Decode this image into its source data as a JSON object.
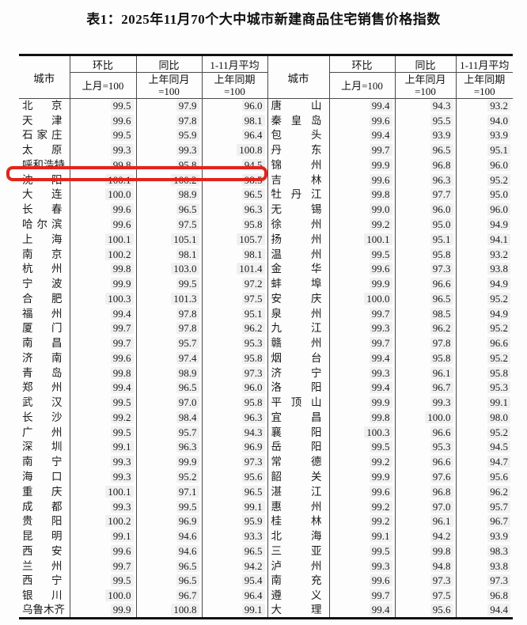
{
  "title": "表1：2025年11月70个大中城市新建商品住宅销售价格指数",
  "header": {
    "city": "城市",
    "mom": "环比",
    "yoy": "同比",
    "avg": "1-11月平均",
    "mom_base": "上月=100",
    "yoy_base": "上年同月\n=100",
    "avg_base": "上年同期\n=100"
  },
  "highlight": {
    "city": "沈阳",
    "color": "#e0251c"
  },
  "table": {
    "left_rows": [
      {
        "city": "北京",
        "mom": "99.5",
        "yoy": "97.9",
        "avg": "96.0"
      },
      {
        "city": "天津",
        "mom": "99.6",
        "yoy": "97.8",
        "avg": "98.1"
      },
      {
        "city": "石家庄",
        "mom": "99.5",
        "yoy": "95.9",
        "avg": "96.4"
      },
      {
        "city": "太原",
        "mom": "99.3",
        "yoy": "99.3",
        "avg": "100.8"
      },
      {
        "city": "呼和浩特",
        "mom": "99.8",
        "yoy": "95.8",
        "avg": "94.5"
      },
      {
        "city": "沈阳",
        "mom": "100.1",
        "yoy": "100.2",
        "avg": "98.5"
      },
      {
        "city": "大连",
        "mom": "100.0",
        "yoy": "98.9",
        "avg": "96.5"
      },
      {
        "city": "长春",
        "mom": "99.6",
        "yoy": "96.5",
        "avg": "96.3"
      },
      {
        "city": "哈尔滨",
        "mom": "99.6",
        "yoy": "97.5",
        "avg": "95.8"
      },
      {
        "city": "上海",
        "mom": "100.1",
        "yoy": "105.1",
        "avg": "105.7"
      },
      {
        "city": "南京",
        "mom": "100.2",
        "yoy": "98.1",
        "avg": "98.1"
      },
      {
        "city": "杭州",
        "mom": "99.8",
        "yoy": "103.0",
        "avg": "101.4"
      },
      {
        "city": "宁波",
        "mom": "99.9",
        "yoy": "99.5",
        "avg": "97.2"
      },
      {
        "city": "合肥",
        "mom": "100.3",
        "yoy": "101.3",
        "avg": "97.5"
      },
      {
        "city": "福州",
        "mom": "99.4",
        "yoy": "97.8",
        "avg": "95.1"
      },
      {
        "city": "厦门",
        "mom": "99.7",
        "yoy": "97.8",
        "avg": "96.2"
      },
      {
        "city": "南昌",
        "mom": "99.7",
        "yoy": "95.7",
        "avg": "95.3"
      },
      {
        "city": "济南",
        "mom": "99.6",
        "yoy": "97.4",
        "avg": "95.8"
      },
      {
        "city": "青岛",
        "mom": "99.8",
        "yoy": "98.9",
        "avg": "97.3"
      },
      {
        "city": "郑州",
        "mom": "99.4",
        "yoy": "96.5",
        "avg": "96.0"
      },
      {
        "city": "武汉",
        "mom": "99.5",
        "yoy": "97.0",
        "avg": "95.8"
      },
      {
        "city": "长沙",
        "mom": "99.2",
        "yoy": "98.4",
        "avg": "96.3"
      },
      {
        "city": "广州",
        "mom": "99.5",
        "yoy": "95.7",
        "avg": "94.3"
      },
      {
        "city": "深圳",
        "mom": "99.1",
        "yoy": "96.3",
        "avg": "96.9"
      },
      {
        "city": "南宁",
        "mom": "99.3",
        "yoy": "99.9",
        "avg": "97.3"
      },
      {
        "city": "海口",
        "mom": "99.3",
        "yoy": "95.2",
        "avg": "95.6"
      },
      {
        "city": "重庆",
        "mom": "100.1",
        "yoy": "97.1",
        "avg": "96.5"
      },
      {
        "city": "成都",
        "mom": "99.3",
        "yoy": "99.5",
        "avg": "99.1"
      },
      {
        "city": "贵阳",
        "mom": "100.2",
        "yoy": "96.9",
        "avg": "95.9"
      },
      {
        "city": "昆明",
        "mom": "99.1",
        "yoy": "94.6",
        "avg": "93.3"
      },
      {
        "city": "西安",
        "mom": "99.6",
        "yoy": "94.6",
        "avg": "96.5"
      },
      {
        "city": "兰州",
        "mom": "99.7",
        "yoy": "96.5",
        "avg": "94.2"
      },
      {
        "city": "西宁",
        "mom": "99.5",
        "yoy": "96.5",
        "avg": "95.4"
      },
      {
        "city": "银川",
        "mom": "100.0",
        "yoy": "96.7",
        "avg": "96.4"
      },
      {
        "city": "乌鲁木齐",
        "mom": "99.9",
        "yoy": "100.8",
        "avg": "99.1"
      }
    ],
    "right_rows": [
      {
        "city": "唐山",
        "mom": "99.4",
        "yoy": "94.3",
        "avg": "93.2"
      },
      {
        "city": "秦皇岛",
        "mom": "99.6",
        "yoy": "95.5",
        "avg": "94.0"
      },
      {
        "city": "包头",
        "mom": "99.4",
        "yoy": "93.9",
        "avg": "93.9"
      },
      {
        "city": "丹东",
        "mom": "99.7",
        "yoy": "96.5",
        "avg": "95.1"
      },
      {
        "city": "锦州",
        "mom": "99.9",
        "yoy": "96.8",
        "avg": "96.0"
      },
      {
        "city": "吉林",
        "mom": "99.6",
        "yoy": "96.3",
        "avg": "95.2"
      },
      {
        "city": "牡丹江",
        "mom": "99.8",
        "yoy": "97.7",
        "avg": "95.0"
      },
      {
        "city": "无锡",
        "mom": "99.0",
        "yoy": "96.0",
        "avg": "96.0"
      },
      {
        "city": "徐州",
        "mom": "99.2",
        "yoy": "95.0",
        "avg": "94.9"
      },
      {
        "city": "扬州",
        "mom": "100.1",
        "yoy": "95.1",
        "avg": "94.1"
      },
      {
        "city": "温州",
        "mom": "99.5",
        "yoy": "95.8",
        "avg": "93.2"
      },
      {
        "city": "金华",
        "mom": "99.6",
        "yoy": "97.3",
        "avg": "93.8"
      },
      {
        "city": "蚌埠",
        "mom": "99.9",
        "yoy": "96.6",
        "avg": "94.9"
      },
      {
        "city": "安庆",
        "mom": "100.0",
        "yoy": "96.5",
        "avg": "95.2"
      },
      {
        "city": "泉州",
        "mom": "99.7",
        "yoy": "98.5",
        "avg": "94.9"
      },
      {
        "city": "九江",
        "mom": "99.3",
        "yoy": "96.2",
        "avg": "95.2"
      },
      {
        "city": "赣州",
        "mom": "99.7",
        "yoy": "97.8",
        "avg": "96.6"
      },
      {
        "city": "烟台",
        "mom": "99.4",
        "yoy": "95.8",
        "avg": "95.2"
      },
      {
        "city": "济宁",
        "mom": "99.3",
        "yoy": "96.1",
        "avg": "95.8"
      },
      {
        "city": "洛阳",
        "mom": "99.4",
        "yoy": "96.7",
        "avg": "95.3"
      },
      {
        "city": "平顶山",
        "mom": "99.9",
        "yoy": "99.3",
        "avg": "99.1"
      },
      {
        "city": "宜昌",
        "mom": "99.8",
        "yoy": "100.0",
        "avg": "98.0"
      },
      {
        "city": "襄阳",
        "mom": "100.3",
        "yoy": "96.6",
        "avg": "95.2"
      },
      {
        "city": "岳阳",
        "mom": "99.5",
        "yoy": "95.3",
        "avg": "94.5"
      },
      {
        "city": "常德",
        "mom": "99.2",
        "yoy": "96.6",
        "avg": "94.7"
      },
      {
        "city": "韶关",
        "mom": "99.9",
        "yoy": "97.6",
        "avg": "95.6"
      },
      {
        "city": "湛江",
        "mom": "99.6",
        "yoy": "96.8",
        "avg": "96.2"
      },
      {
        "city": "惠州",
        "mom": "99.2",
        "yoy": "97.0",
        "avg": "95.7"
      },
      {
        "city": "桂林",
        "mom": "99.2",
        "yoy": "96.1",
        "avg": "96.7"
      },
      {
        "city": "北海",
        "mom": "99.1",
        "yoy": "94.2",
        "avg": "93.9"
      },
      {
        "city": "三亚",
        "mom": "99.5",
        "yoy": "99.8",
        "avg": "98.3"
      },
      {
        "city": "泸州",
        "mom": "99.3",
        "yoy": "94.8",
        "avg": "93.8"
      },
      {
        "city": "南充",
        "mom": "99.6",
        "yoy": "97.3",
        "avg": "97.3"
      },
      {
        "city": "遵义",
        "mom": "99.7",
        "yoy": "97.5",
        "avg": "96.8"
      },
      {
        "city": "大理",
        "mom": "99.4",
        "yoy": "95.6",
        "avg": "94.4"
      }
    ]
  }
}
